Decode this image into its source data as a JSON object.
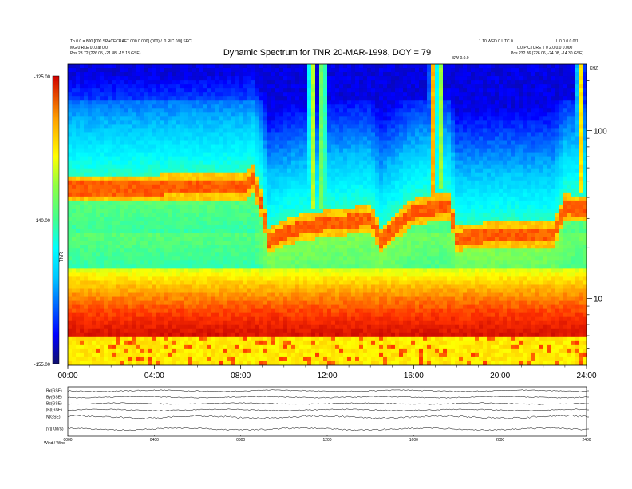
{
  "header": {
    "title": "Dynamic Spectrum for TNR 20-MAR-1998, DOY = 79",
    "left_line1": "Tb 0.0 = 800 [000 SPACECRAFT 000 0 000] (000) / .0 RIC 0/0] SPC",
    "left_line2": "MG 0 RLE 0 .0 at 0.0",
    "left_line3": "Pos   23.72 (226.05, -21.88, -15.18 GSE)",
    "right_line1": "1.10 WED 0 UTC 0",
    "right_line2": "L 0.0 0 0 0/1",
    "right_line3": "0.0 PICTURE T 0 2.0 0.0 0.000",
    "right_line4": "Pos   232.86 (226.06, -24.08, -14.30 GSE)",
    "right_label": "KHZ",
    "mid_label": "SW 0.0.0"
  },
  "colorbar": {
    "ticks": [
      "-125.00",
      "-140.00",
      "-155.00"
    ],
    "label": "TNR"
  },
  "footer_label": "Wind / Wind",
  "chart_data": {
    "type": "heatmap",
    "title": "Dynamic Spectrum for TNR 20-MAR-1998, DOY = 79",
    "xlabel": "",
    "ylabel": "",
    "x_ticks": [
      "00:00",
      "04:00",
      "08:00",
      "12:00",
      "16:00",
      "20:00",
      "24:00"
    ],
    "x_range_hours": [
      0,
      24
    ],
    "y_scale": "log",
    "y_ticks": [
      "100",
      "10"
    ],
    "y_range_khz": [
      4,
      250
    ],
    "color_range_db": [
      -155,
      -125
    ],
    "colormap": [
      "#10106e",
      "#0000ff",
      "#0064ff",
      "#00c8ff",
      "#00ffff",
      "#40ff90",
      "#90ff40",
      "#ffff00",
      "#ffa000",
      "#ff3000",
      "#c00000"
    ],
    "features": {
      "background_level_hours": [
        0,
        3,
        5,
        8.2,
        8.6,
        9.3,
        10.5,
        12,
        14,
        14.5,
        16,
        17.6,
        18,
        20,
        22.5,
        23,
        24
      ],
      "plasma_line_khz": [
        45,
        45,
        46,
        47,
        52,
        22,
        26,
        28,
        30,
        22,
        33,
        36,
        23,
        24,
        24,
        35,
        34
      ],
      "type_iii_bursts_hours": [
        11.3,
        11.8,
        16.9,
        17.2,
        23.7
      ],
      "bright_low_freq_band_khz": [
        4,
        6
      ]
    },
    "sub_panels": {
      "labels": [
        "Bx(GSE)",
        "By(GSE)",
        "Bz(GSE)",
        "|B|(GSE)",
        "N(GSE)",
        "|V|(KM/S)"
      ],
      "x_ticks": [
        "0000",
        "0400",
        "0800",
        "1200",
        "1600",
        "2000",
        "2400"
      ]
    }
  }
}
